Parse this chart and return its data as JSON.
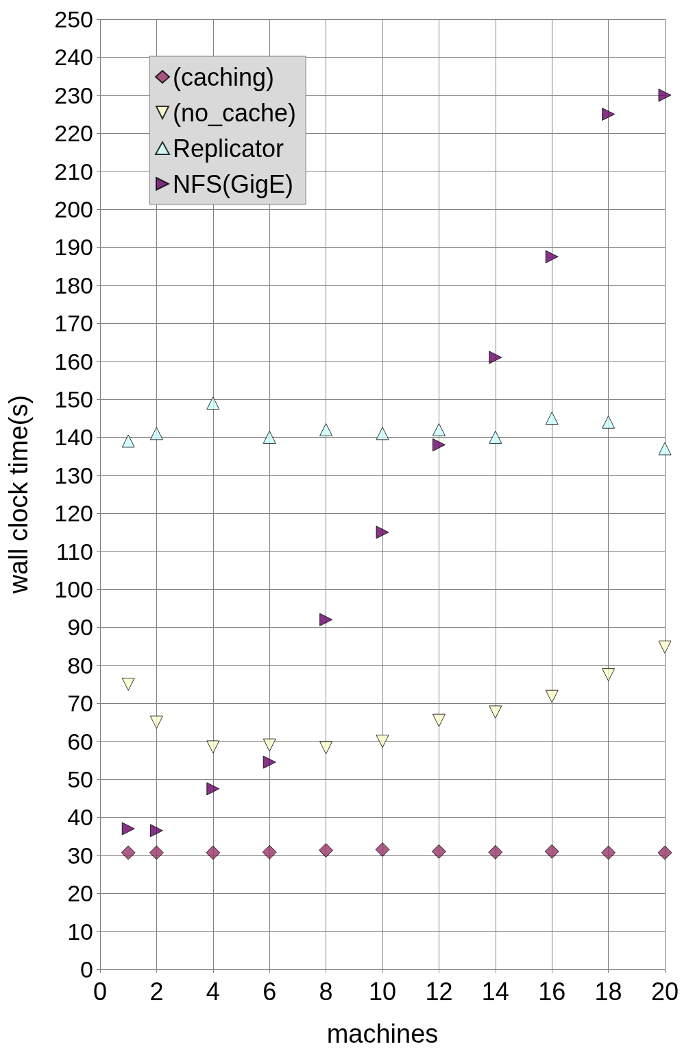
{
  "chart_data": {
    "type": "scatter",
    "xlabel": "machines",
    "ylabel": "wall clock time(s)",
    "x": [
      1,
      2,
      4,
      6,
      8,
      10,
      12,
      14,
      16,
      18,
      20
    ],
    "series": [
      {
        "name": "(caching)",
        "color": "#993366",
        "marker": "diamond",
        "values": [
          30.7,
          30.7,
          30.7,
          30.8,
          31.3,
          31.5,
          31,
          30.8,
          31,
          30.7,
          30.7
        ]
      },
      {
        "name": "(no_cache)",
        "color": "#ffffcc",
        "marker": "triangle-down",
        "values": [
          75,
          65,
          58.5,
          59,
          58.3,
          60,
          65.5,
          67.7,
          71.8,
          77.5,
          84.8
        ]
      },
      {
        "name": "Replicator",
        "color": "#ccffff",
        "marker": "triangle",
        "values": [
          139,
          141,
          149,
          140,
          142,
          141,
          142,
          140,
          145,
          144,
          137
        ]
      },
      {
        "name": "NFS(GigE)",
        "color": "#660066",
        "marker": "triangle-right",
        "values": [
          37,
          36.5,
          47.5,
          54.5,
          92,
          115,
          138,
          161,
          187.5,
          225,
          230
        ]
      }
    ],
    "xlim": [
      0,
      20
    ],
    "xticks": [
      0,
      2,
      4,
      6,
      8,
      10,
      12,
      14,
      16,
      18,
      20
    ],
    "ylim": [
      0,
      250
    ],
    "yticks": [
      0,
      10,
      20,
      30,
      40,
      50,
      60,
      70,
      80,
      90,
      100,
      110,
      120,
      130,
      140,
      150,
      160,
      170,
      180,
      190,
      200,
      210,
      220,
      230,
      240,
      250
    ],
    "grid": true,
    "legend": "top left"
  }
}
